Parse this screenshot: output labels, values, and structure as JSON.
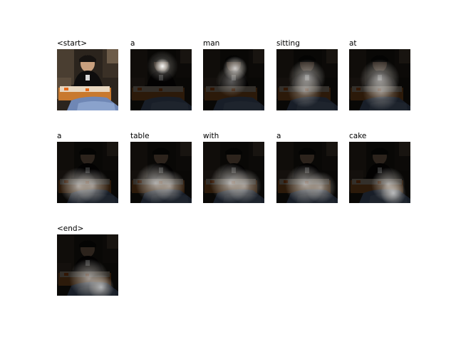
{
  "figure": {
    "words": [
      "<start>",
      "a",
      "man",
      "sitting",
      "at",
      "a",
      "table",
      "with",
      "a",
      "cake",
      "<end>"
    ]
  }
}
